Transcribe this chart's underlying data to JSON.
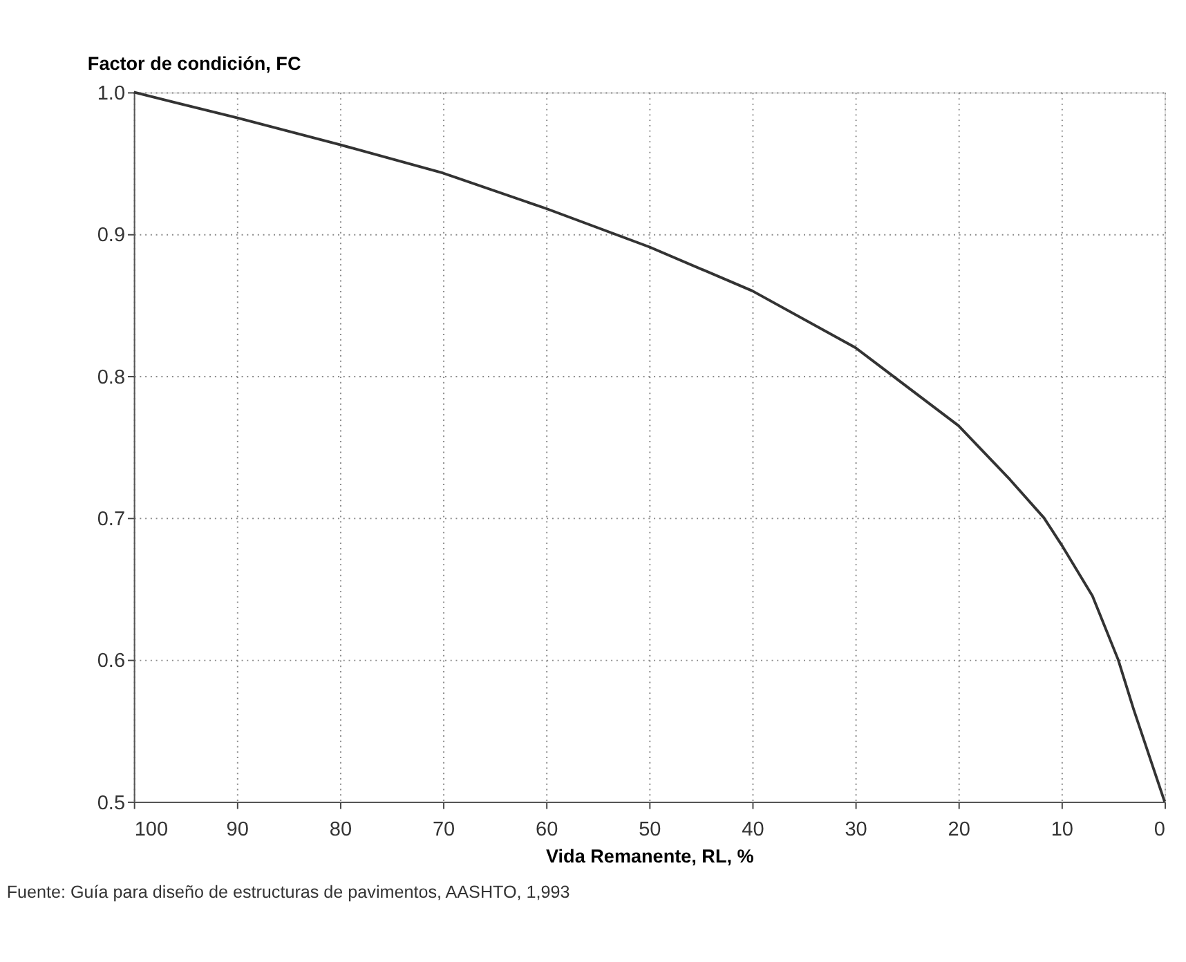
{
  "chart_data": {
    "type": "line",
    "ylabel": "Factor de condición, FC",
    "xlabel": "Vida Remanente,    RL,        %",
    "annotations": [
      "Fuente:  Guía para diseño de estructuras de pavimentos, AASHTO, 1,993"
    ],
    "x": [
      100,
      90,
      80,
      70,
      60,
      50,
      40,
      30,
      20,
      15,
      11.7,
      10,
      7,
      4.5,
      3,
      0
    ],
    "series": [
      {
        "color": "#333333",
        "values": [
          1.0,
          0.982,
          0.963,
          0.943,
          0.918,
          0.891,
          0.86,
          0.82,
          0.765,
          0.727,
          0.7,
          0.681,
          0.645,
          0.6,
          0.565,
          0.5
        ]
      }
    ],
    "xlim": [
      100,
      0
    ],
    "xticks": [
      100,
      90,
      80,
      70,
      60,
      50,
      40,
      30,
      20,
      10,
      0
    ],
    "ylim": [
      0.5,
      1.0
    ],
    "yticks": [
      {
        "value": 0.5,
        "label": "0.5"
      },
      {
        "value": 0.6,
        "label": "0.6"
      },
      {
        "value": 0.7,
        "label": "0.7"
      },
      {
        "value": 0.8,
        "label": "0.8"
      },
      {
        "value": 0.9,
        "label": "0.9"
      },
      {
        "value": 1.0,
        "label": "1.0"
      }
    ],
    "grid": true,
    "legend": false,
    "marker": "none",
    "line_style": "solid"
  }
}
